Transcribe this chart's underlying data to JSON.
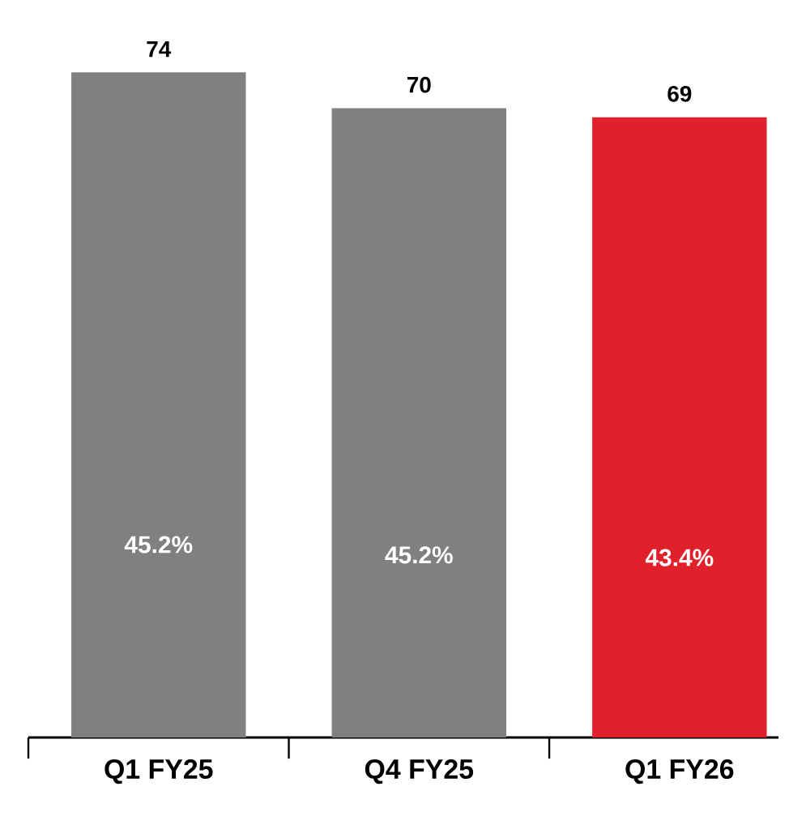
{
  "chart_data": {
    "type": "bar",
    "categories": [
      "Q1 FY25",
      "Q4 FY25",
      "Q1 FY26"
    ],
    "values": [
      74,
      70,
      69
    ],
    "colors": [
      "#808080",
      "#808080",
      "#e0202a"
    ],
    "data_labels": true,
    "annotations": [
      "45.2%",
      "45.2%",
      "43.4%"
    ]
  }
}
